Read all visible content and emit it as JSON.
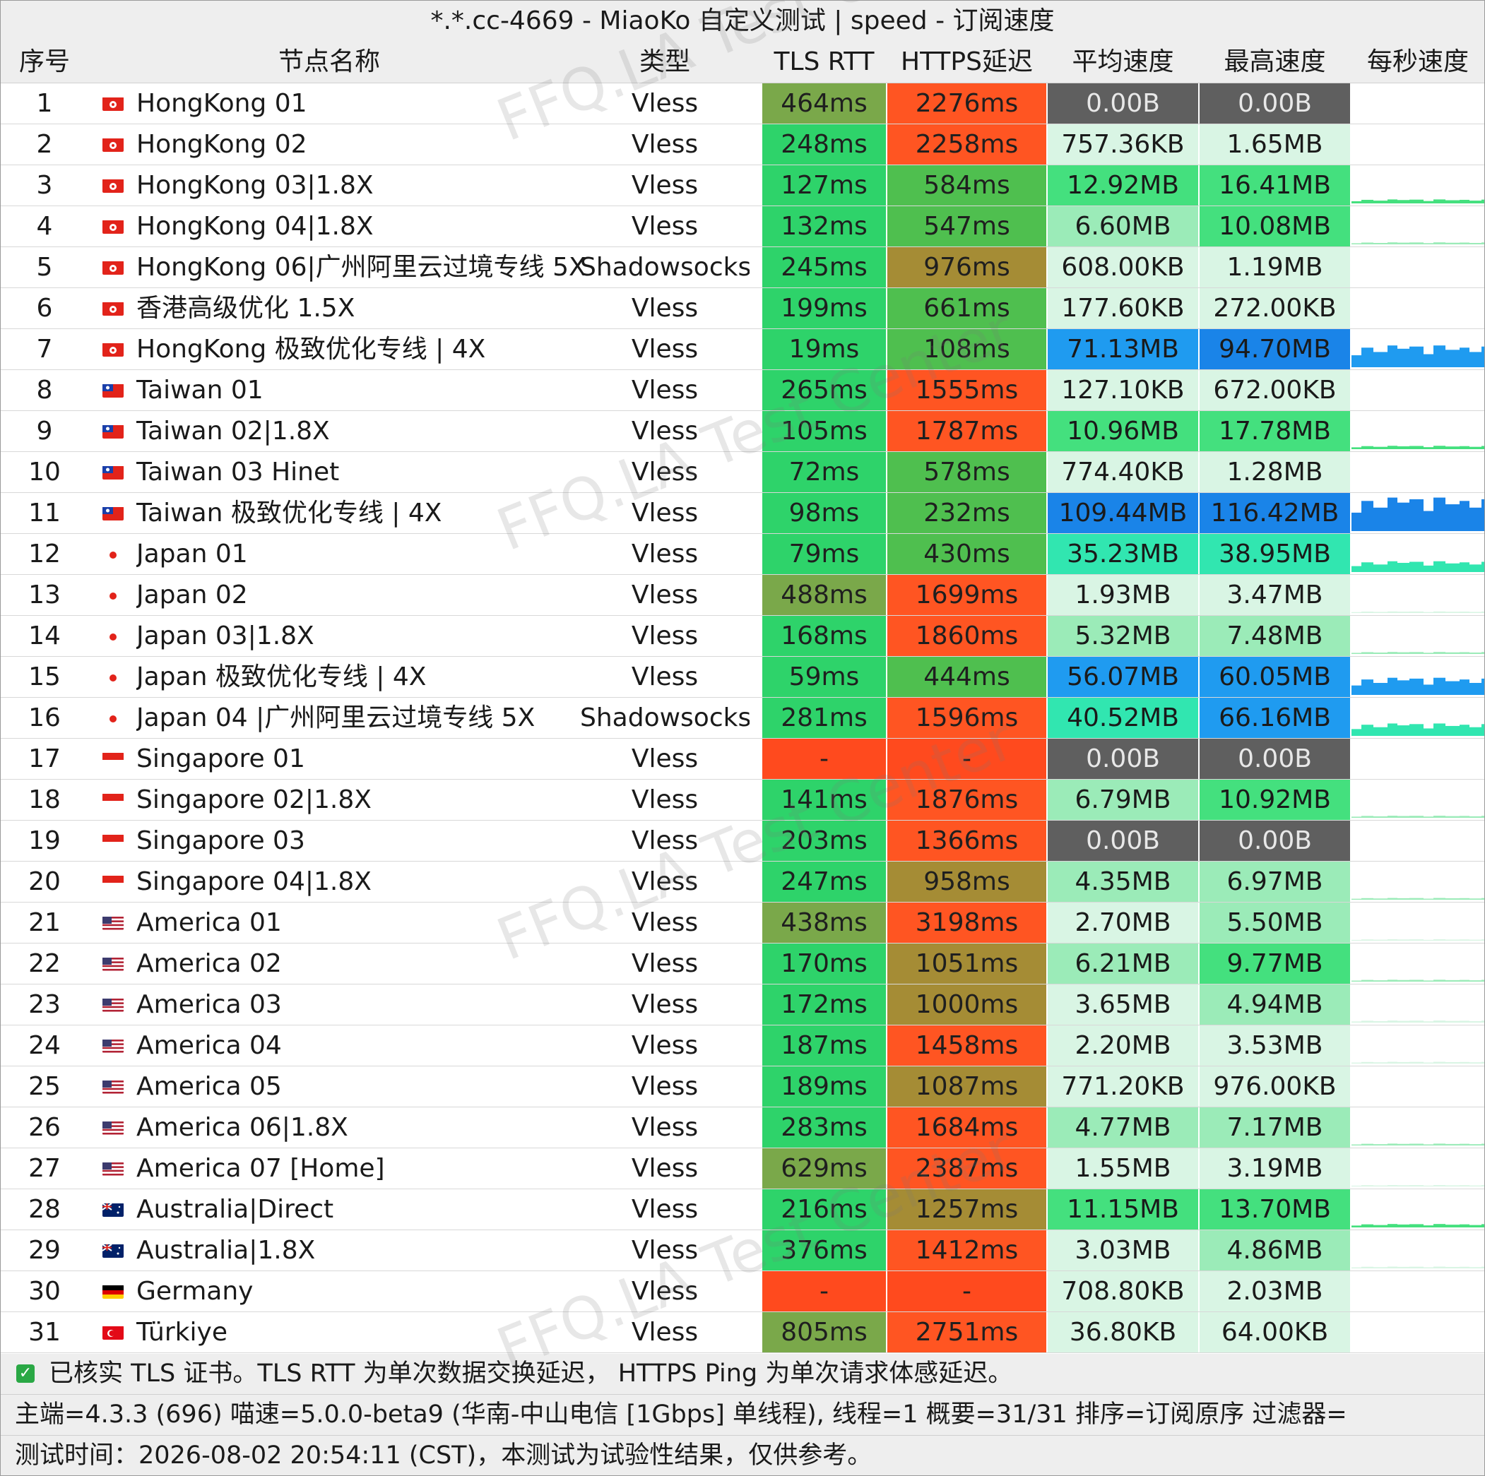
{
  "window": {
    "title": "*.*.cc-4669 - MiaoKo 自定义测试 | speed - 订阅速度"
  },
  "table": {
    "headers": [
      "序号",
      "节点名称",
      "类型",
      "TLS RTT",
      "HTTPS延迟",
      "平均速度",
      "最高速度",
      "每秒速度"
    ],
    "rows": [
      {
        "idx": "1",
        "flag": "hk-flag-icon",
        "name": "HongKong 01",
        "type": "Vless",
        "tls": "464ms",
        "https": "2276ms",
        "avg": "0.00B",
        "max": "0.00B"
      },
      {
        "idx": "2",
        "flag": "hk-flag-icon",
        "name": "HongKong 02",
        "type": "Vless",
        "tls": "248ms",
        "https": "2258ms",
        "avg": "757.36KB",
        "max": "1.65MB"
      },
      {
        "idx": "3",
        "flag": "hk-flag-icon",
        "name": "HongKong 03|1.8X",
        "type": "Vless",
        "tls": "127ms",
        "https": "584ms",
        "avg": "12.92MB",
        "max": "16.41MB"
      },
      {
        "idx": "4",
        "flag": "hk-flag-icon",
        "name": "HongKong 04|1.8X",
        "type": "Vless",
        "tls": "132ms",
        "https": "547ms",
        "avg": "6.60MB",
        "max": "10.08MB"
      },
      {
        "idx": "5",
        "flag": "hk-flag-icon",
        "name": "HongKong 06|广州阿里云过境专线 5X",
        "type": "Shadowsocks",
        "tls": "245ms",
        "https": "976ms",
        "avg": "608.00KB",
        "max": "1.19MB"
      },
      {
        "idx": "6",
        "flag": "hk-flag-icon",
        "name": "香港高级优化 1.5X",
        "type": "Vless",
        "tls": "199ms",
        "https": "661ms",
        "avg": "177.60KB",
        "max": "272.00KB"
      },
      {
        "idx": "7",
        "flag": "hk-flag-icon",
        "name": "HongKong 极致优化专线 | 4X",
        "type": "Vless",
        "tls": "19ms",
        "https": "108ms",
        "avg": "71.13MB",
        "max": "94.70MB"
      },
      {
        "idx": "8",
        "flag": "tw-flag-icon",
        "name": "Taiwan 01",
        "type": "Vless",
        "tls": "265ms",
        "https": "1555ms",
        "avg": "127.10KB",
        "max": "672.00KB"
      },
      {
        "idx": "9",
        "flag": "tw-flag-icon",
        "name": "Taiwan 02|1.8X",
        "type": "Vless",
        "tls": "105ms",
        "https": "1787ms",
        "avg": "10.96MB",
        "max": "17.78MB"
      },
      {
        "idx": "10",
        "flag": "tw-flag-icon",
        "name": "Taiwan 03 Hinet",
        "type": "Vless",
        "tls": "72ms",
        "https": "578ms",
        "avg": "774.40KB",
        "max": "1.28MB"
      },
      {
        "idx": "11",
        "flag": "tw-flag-icon",
        "name": "Taiwan 极致优化专线 | 4X",
        "type": "Vless",
        "tls": "98ms",
        "https": "232ms",
        "avg": "109.44MB",
        "max": "116.42MB"
      },
      {
        "idx": "12",
        "flag": "jp-flag-icon",
        "name": "Japan 01",
        "type": "Vless",
        "tls": "79ms",
        "https": "430ms",
        "avg": "35.23MB",
        "max": "38.95MB"
      },
      {
        "idx": "13",
        "flag": "jp-flag-icon",
        "name": "Japan 02",
        "type": "Vless",
        "tls": "488ms",
        "https": "1699ms",
        "avg": "1.93MB",
        "max": "3.47MB"
      },
      {
        "idx": "14",
        "flag": "jp-flag-icon",
        "name": "Japan 03|1.8X",
        "type": "Vless",
        "tls": "168ms",
        "https": "1860ms",
        "avg": "5.32MB",
        "max": "7.48MB"
      },
      {
        "idx": "15",
        "flag": "jp-flag-icon",
        "name": "Japan 极致优化专线 | 4X",
        "type": "Vless",
        "tls": "59ms",
        "https": "444ms",
        "avg": "56.07MB",
        "max": "60.05MB"
      },
      {
        "idx": "16",
        "flag": "jp-flag-icon",
        "name": "Japan 04 |广州阿里云过境专线 5X",
        "type": "Shadowsocks",
        "tls": "281ms",
        "https": "1596ms",
        "avg": "40.52MB",
        "max": "66.16MB"
      },
      {
        "idx": "17",
        "flag": "sg-flag-icon",
        "name": "Singapore 01",
        "type": "Vless",
        "tls": "-",
        "https": "-",
        "avg": "0.00B",
        "max": "0.00B"
      },
      {
        "idx": "18",
        "flag": "sg-flag-icon",
        "name": "Singapore 02|1.8X",
        "type": "Vless",
        "tls": "141ms",
        "https": "1876ms",
        "avg": "6.79MB",
        "max": "10.92MB"
      },
      {
        "idx": "19",
        "flag": "sg-flag-icon",
        "name": "Singapore 03",
        "type": "Vless",
        "tls": "203ms",
        "https": "1366ms",
        "avg": "0.00B",
        "max": "0.00B"
      },
      {
        "idx": "20",
        "flag": "sg-flag-icon",
        "name": "Singapore 04|1.8X",
        "type": "Vless",
        "tls": "247ms",
        "https": "958ms",
        "avg": "4.35MB",
        "max": "6.97MB"
      },
      {
        "idx": "21",
        "flag": "us-flag-icon",
        "name": "America 01",
        "type": "Vless",
        "tls": "438ms",
        "https": "3198ms",
        "avg": "2.70MB",
        "max": "5.50MB"
      },
      {
        "idx": "22",
        "flag": "us-flag-icon",
        "name": "America 02",
        "type": "Vless",
        "tls": "170ms",
        "https": "1051ms",
        "avg": "6.21MB",
        "max": "9.77MB"
      },
      {
        "idx": "23",
        "flag": "us-flag-icon",
        "name": "America 03",
        "type": "Vless",
        "tls": "172ms",
        "https": "1000ms",
        "avg": "3.65MB",
        "max": "4.94MB"
      },
      {
        "idx": "24",
        "flag": "us-flag-icon",
        "name": "America 04",
        "type": "Vless",
        "tls": "187ms",
        "https": "1458ms",
        "avg": "2.20MB",
        "max": "3.53MB"
      },
      {
        "idx": "25",
        "flag": "us-flag-icon",
        "name": "America 05",
        "type": "Vless",
        "tls": "189ms",
        "https": "1087ms",
        "avg": "771.20KB",
        "max": "976.00KB"
      },
      {
        "idx": "26",
        "flag": "us-flag-icon",
        "name": "America 06|1.8X",
        "type": "Vless",
        "tls": "283ms",
        "https": "1684ms",
        "avg": "4.77MB",
        "max": "7.17MB"
      },
      {
        "idx": "27",
        "flag": "us-flag-icon",
        "name": "America 07 [Home]",
        "type": "Vless",
        "tls": "629ms",
        "https": "2387ms",
        "avg": "1.55MB",
        "max": "3.19MB"
      },
      {
        "idx": "28",
        "flag": "au-flag-icon",
        "name": "Australia|Direct",
        "type": "Vless",
        "tls": "216ms",
        "https": "1257ms",
        "avg": "11.15MB",
        "max": "13.70MB"
      },
      {
        "idx": "29",
        "flag": "au-flag-icon",
        "name": "Australia|1.8X",
        "type": "Vless",
        "tls": "376ms",
        "https": "1412ms",
        "avg": "3.03MB",
        "max": "4.86MB"
      },
      {
        "idx": "30",
        "flag": "de-flag-icon",
        "name": "Germany",
        "type": "Vless",
        "tls": "-",
        "https": "-",
        "avg": "708.80KB",
        "max": "2.03MB"
      },
      {
        "idx": "31",
        "flag": "tr-flag-icon",
        "name": "Türkiye",
        "type": "Vless",
        "tls": "805ms",
        "https": "2751ms",
        "avg": "36.80KB",
        "max": "64.00KB"
      }
    ]
  },
  "colors": {
    "tls_green": "#2ed36a",
    "tls_dark": "#7aa84a",
    "tls_fail": "#ff4a1e",
    "https_green": "#4fbf4f",
    "https_olive": "#a58c35",
    "https_red": "#ff5522",
    "speed_gray": "#5f5f5f",
    "speed_pale": "#d9f5e4",
    "speed_light": "#9bebb8",
    "speed_mid": "#44e07e",
    "speed_teal": "#31e6b0",
    "speed_blue": "#1f9bf0",
    "speed_deepblue": "#1a84e8"
  },
  "flags": {
    "hk-flag-icon": [
      "#e2231a",
      "#ffffff"
    ],
    "tw-flag-icon": [
      "#e2231a",
      "#1a3faa"
    ],
    "jp-flag-icon": [
      "#ffffff",
      "#e2231a"
    ],
    "sg-flag-icon": [
      "#e2231a",
      "#ffffff"
    ],
    "us-flag-icon": [
      "#b22234",
      "#3c3b6e"
    ],
    "au-flag-icon": [
      "#012169",
      "#e2231a"
    ],
    "de-flag-icon": [
      "#000000",
      "#ffce00"
    ],
    "tr-flag-icon": [
      "#e30a17",
      "#ffffff"
    ]
  },
  "footer": {
    "note": "已核实 TLS 证书。TLS RTT 为单次数据交换延迟， HTTPS Ping 为单次请求体感延迟。",
    "info": "主端=4.3.3 (696) 喵速=5.0.0-beta9 (华南-中山电信 [1Gbps] 单线程), 线程=1 概要=31/31 排序=订阅原序 过滤器=",
    "time": "测试时间：2026-08-02 20:54:11 (CST)，本测试为试验性结果，仅供参考。"
  },
  "watermark": "FFQ.LA Test Center"
}
